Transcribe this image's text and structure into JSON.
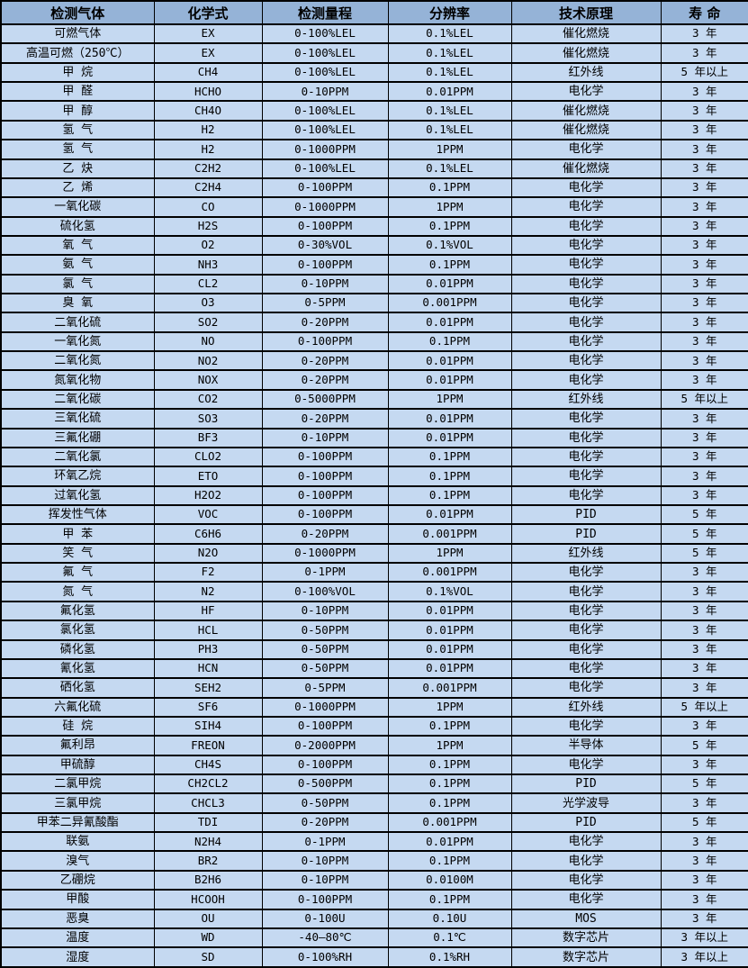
{
  "colors": {
    "header_bg": "#95B3D7",
    "row_bg": "#C5D9F1",
    "border": "#000000",
    "text": "#000000"
  },
  "table": {
    "headers": [
      "检测气体",
      "化学式",
      "检测量程",
      "分辨率",
      "技术原理",
      "寿 命"
    ],
    "rows": [
      [
        "可燃气体",
        "EX",
        "0-100%LEL",
        "0.1%LEL",
        "催化燃烧",
        "3 年"
      ],
      [
        "高温可燃（250℃）",
        "EX",
        "0-100%LEL",
        "0.1%LEL",
        "催化燃烧",
        "3 年"
      ],
      [
        "甲 烷",
        "CH4",
        "0-100%LEL",
        "0.1%LEL",
        "红外线",
        "5 年以上"
      ],
      [
        "甲 醛",
        "HCHO",
        "0-10PPM",
        "0.01PPM",
        "电化学",
        "3 年"
      ],
      [
        "甲 醇",
        "CH4O",
        "0-100%LEL",
        "0.1%LEL",
        "催化燃烧",
        "3 年"
      ],
      [
        "氢 气",
        "H2",
        "0-100%LEL",
        "0.1%LEL",
        "催化燃烧",
        "3 年"
      ],
      [
        "氢 气",
        "H2",
        "0-1000PPM",
        "1PPM",
        "电化学",
        "3 年"
      ],
      [
        "乙 炔",
        "C2H2",
        "0-100%LEL",
        "0.1%LEL",
        "催化燃烧",
        "3 年"
      ],
      [
        "乙 烯",
        "C2H4",
        "0-100PPM",
        "0.1PPM",
        "电化学",
        "3 年"
      ],
      [
        "一氧化碳",
        "CO",
        "0-1000PPM",
        "1PPM",
        "电化学",
        "3 年"
      ],
      [
        "硫化氢",
        "H2S",
        "0-100PPM",
        "0.1PPM",
        "电化学",
        "3 年"
      ],
      [
        "氧 气",
        "O2",
        "0-30%VOL",
        "0.1%VOL",
        "电化学",
        "3 年"
      ],
      [
        "氨 气",
        "NH3",
        "0-100PPM",
        "0.1PPM",
        "电化学",
        "3 年"
      ],
      [
        "氯 气",
        "CL2",
        "0-10PPM",
        "0.01PPM",
        "电化学",
        "3 年"
      ],
      [
        "臭 氧",
        "O3",
        "0-5PPM",
        "0.001PPM",
        "电化学",
        "3 年"
      ],
      [
        "二氧化硫",
        "SO2",
        "0-20PPM",
        "0.01PPM",
        "电化学",
        "3 年"
      ],
      [
        "一氧化氮",
        "NO",
        "0-100PPM",
        "0.1PPM",
        "电化学",
        "3 年"
      ],
      [
        "二氧化氮",
        "NO2",
        "0-20PPM",
        "0.01PPM",
        "电化学",
        "3 年"
      ],
      [
        "氮氧化物",
        "NOX",
        "0-20PPM",
        "0.01PPM",
        "电化学",
        "3 年"
      ],
      [
        "二氧化碳",
        "CO2",
        "0-5000PPM",
        "1PPM",
        "红外线",
        "5 年以上"
      ],
      [
        "三氧化硫",
        "SO3",
        "0-20PPM",
        "0.01PPM",
        "电化学",
        "3 年"
      ],
      [
        "三氟化硼",
        "BF3",
        "0-10PPM",
        "0.01PPM",
        "电化学",
        "3 年"
      ],
      [
        "二氧化氯",
        "CLO2",
        "0-100PPM",
        "0.1PPM",
        "电化学",
        "3 年"
      ],
      [
        "环氧乙烷",
        "ETO",
        "0-100PPM",
        "0.1PPM",
        "电化学",
        "3 年"
      ],
      [
        "过氧化氢",
        "H2O2",
        "0-100PPM",
        "0.1PPM",
        "电化学",
        "3 年"
      ],
      [
        "挥发性气体",
        "VOC",
        "0-100PPM",
        "0.01PPM",
        "PID",
        "5 年"
      ],
      [
        "甲 苯",
        "C6H6",
        "0-20PPM",
        "0.001PPM",
        "PID",
        "5 年"
      ],
      [
        "笑 气",
        "N2O",
        "0-1000PPM",
        "1PPM",
        "红外线",
        "5 年"
      ],
      [
        "氟 气",
        "F2",
        "0-1PPM",
        "0.001PPM",
        "电化学",
        "3 年"
      ],
      [
        "氮 气",
        "N2",
        "0-100%VOL",
        "0.1%VOL",
        "电化学",
        "3 年"
      ],
      [
        "氟化氢",
        "HF",
        "0-10PPM",
        "0.01PPM",
        "电化学",
        "3 年"
      ],
      [
        "氯化氢",
        "HCL",
        "0-50PPM",
        "0.01PPM",
        "电化学",
        "3 年"
      ],
      [
        "磷化氢",
        "PH3",
        "0-50PPM",
        "0.01PPM",
        "电化学",
        "3 年"
      ],
      [
        "氰化氢",
        "HCN",
        "0-50PPM",
        "0.01PPM",
        "电化学",
        "3 年"
      ],
      [
        "硒化氢",
        "SEH2",
        "0-5PPM",
        "0.001PPM",
        "电化学",
        "3 年"
      ],
      [
        "六氟化硫",
        "SF6",
        "0-1000PPM",
        "1PPM",
        "红外线",
        "5 年以上"
      ],
      [
        "硅 烷",
        "SIH4",
        "0-100PPM",
        "0.1PPM",
        "电化学",
        "3 年"
      ],
      [
        "氟利昂",
        "FREON",
        "0-2000PPM",
        "1PPM",
        "半导体",
        "5 年"
      ],
      [
        "甲硫醇",
        "CH4S",
        "0-100PPM",
        "0.1PPM",
        "电化学",
        "3 年"
      ],
      [
        "二氯甲烷",
        "CH2CL2",
        "0-500PPM",
        "0.1PPM",
        "PID",
        "5 年"
      ],
      [
        "三氯甲烷",
        "CHCL3",
        "0-50PPM",
        "0.1PPM",
        "光学波导",
        "3 年"
      ],
      [
        "甲苯二异氰酸酯",
        "TDI",
        "0-20PPM",
        "0.001PPM",
        "PID",
        "5 年"
      ],
      [
        "联氨",
        "N2H4",
        "0-1PPM",
        "0.01PPM",
        "电化学",
        "3 年"
      ],
      [
        "溴气",
        "BR2",
        "0-10PPM",
        "0.1PPM",
        "电化学",
        "3 年"
      ],
      [
        "乙硼烷",
        "B2H6",
        "0-10PPM",
        "0.0100M",
        "电化学",
        "3 年"
      ],
      [
        "甲酸",
        "HCOOH",
        "0-100PPM",
        "0.1PPM",
        "电化学",
        "3 年"
      ],
      [
        "恶臭",
        "OU",
        "0-100U",
        "0.10U",
        "MOS",
        "3 年"
      ],
      [
        "温度",
        "WD",
        "-40—80℃",
        "0.1℃",
        "数字芯片",
        "3 年以上"
      ],
      [
        "湿度",
        "SD",
        "0-100%RH",
        "0.1%RH",
        "数字芯片",
        "3 年以上"
      ]
    ]
  }
}
